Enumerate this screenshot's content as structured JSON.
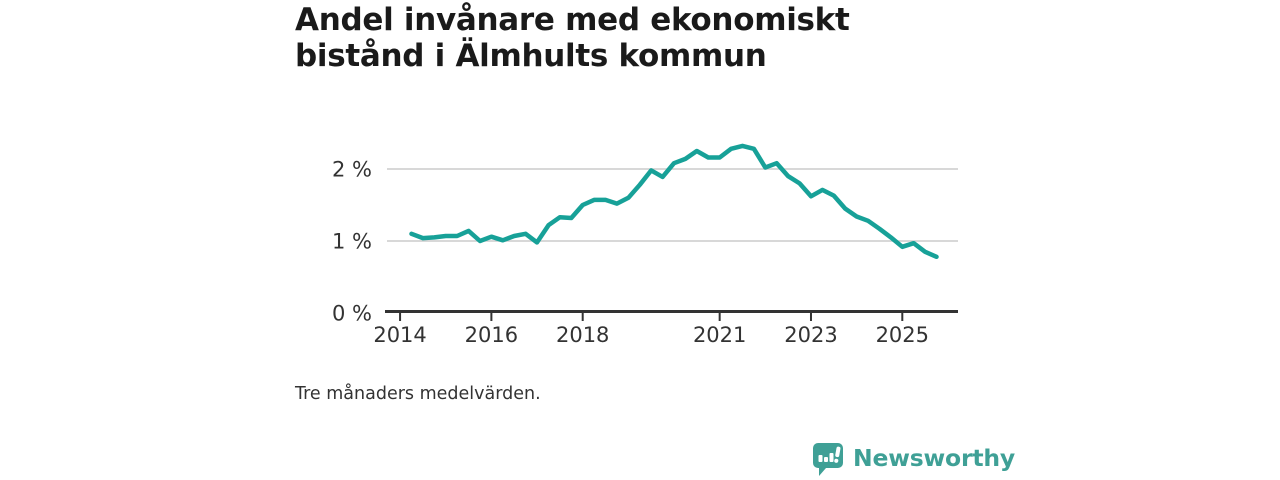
{
  "header": {
    "title": "Andel invånare med ekonomiskt bistånd i Älmhults kommun",
    "title_lines": [
      "Andel invånare med ekonomiskt",
      "bistånd i Älmhults kommun"
    ]
  },
  "footnote": "Tre månaders medelvärden.",
  "logo": {
    "brand": "Newsworthy",
    "icon": "speech-bubble-bar-chart-icon"
  },
  "colors": {
    "background": "#ffffff",
    "line": "#17a198",
    "grid": "#cccccc",
    "axis": "#333333",
    "tick_text": "#333333",
    "title_text": "#1a1a1a",
    "logo_teal": "#3fa096"
  },
  "chart_data": {
    "type": "line",
    "title": "Andel invånare med ekonomiskt bistånd i Älmhults kommun",
    "series_name": "Andel invånare med ekonomiskt bistånd (%)",
    "note": "Tre månaders medelvärden.",
    "grid": "horizontal-only",
    "legend": "none",
    "xlim": [
      2013.67,
      2026.22
    ],
    "ylim": [
      0,
      2.472
    ],
    "x_ticks": [
      {
        "t": 2014,
        "label": "2014"
      },
      {
        "t": 2016,
        "label": "2016"
      },
      {
        "t": 2018,
        "label": "2018"
      },
      {
        "t": 2021,
        "label": "2021"
      },
      {
        "t": 2023,
        "label": "2023"
      },
      {
        "t": 2025,
        "label": "2025"
      }
    ],
    "y_ticks": [
      {
        "v": 0,
        "label": "0 %"
      },
      {
        "v": 1,
        "label": "1 %"
      },
      {
        "v": 2,
        "label": "2 %"
      }
    ],
    "x": [
      2014.25,
      2014.5,
      2014.75,
      2015,
      2015.25,
      2015.5,
      2015.75,
      2016,
      2016.25,
      2016.5,
      2016.75,
      2017,
      2017.25,
      2017.5,
      2017.75,
      2018,
      2018.25,
      2018.5,
      2018.75,
      2019,
      2019.25,
      2019.5,
      2019.75,
      2020,
      2020.25,
      2020.5,
      2020.75,
      2021,
      2021.25,
      2021.5,
      2021.75,
      2022,
      2022.25,
      2022.5,
      2022.75,
      2023,
      2023.25,
      2023.5,
      2023.75,
      2024,
      2024.25,
      2024.5,
      2024.75,
      2025,
      2025.25,
      2025.5,
      2025.75
    ],
    "values": [
      1.1,
      1.04,
      1.05,
      1.07,
      1.07,
      1.14,
      1.0,
      1.06,
      1.01,
      1.07,
      1.1,
      0.98,
      1.22,
      1.33,
      1.32,
      1.5,
      1.57,
      1.57,
      1.52,
      1.6,
      1.78,
      1.98,
      1.89,
      2.08,
      2.14,
      2.25,
      2.16,
      2.16,
      2.28,
      2.32,
      2.28,
      2.02,
      2.08,
      1.9,
      1.8,
      1.62,
      1.71,
      1.63,
      1.45,
      1.34,
      1.28,
      1.17,
      1.05,
      0.92,
      0.97,
      0.85,
      0.78
    ]
  }
}
